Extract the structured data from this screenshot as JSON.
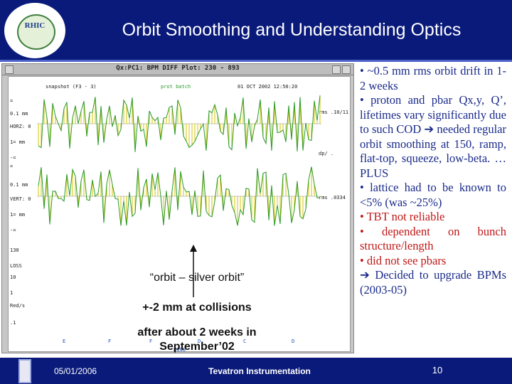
{
  "slide": {
    "title": "Orbit Smoothing and Understanding Optics",
    "logo_text": "RHIC"
  },
  "screenshot": {
    "window_title": "Qx:PC1: BPM DIFF Plot: 230 - 893",
    "snapshot": "snapshot (F3 - 3)",
    "prot_batch": "prot batch",
    "timestamp": "01 OCT 2002 12:50:20",
    "left_labels": [
      "=",
      "0.1 mm",
      "HORZ: 0",
      "1= mm",
      "-=",
      "=",
      "0.1 mm",
      "VERT: 0",
      "1= mm",
      "-=",
      "130",
      "LOSS",
      "10",
      "1",
      "Red/s",
      ".1"
    ],
    "right_labels": [
      "rms .10/11",
      "dp/ .",
      "rms .0334"
    ],
    "bottom_labels": [
      "E",
      "F",
      "F",
      "D",
      "C",
      "D",
      "RING"
    ]
  },
  "annotations": {
    "line1": "“orbit – silver orbit”",
    "line2": "+-2 mm at collisions",
    "line3": "after about 2 weeks in September’02"
  },
  "bullets": [
    {
      "text": "• ~0.5 mm rms orbit drift in 1-2 weeks",
      "color": "blue"
    },
    {
      "text": "•  proton and pbar Qx,y, Q’, lifetimes vary significantly due to such COD ➔ needed regular orbit smoothing at 150, ramp, flat-top, squeeze, low-beta. … PLUS",
      "color": "blue"
    },
    {
      "text": "• lattice had to be known to <5% (was ~25%)",
      "color": "blue"
    },
    {
      "text": "• TBT not reliable",
      "color": "red"
    },
    {
      "text": "•  dependent on bunch structure/length",
      "color": "red"
    },
    {
      "text": "• did not see pbars",
      "color": "red"
    },
    {
      "text": "➔ Decided to upgrade BPMs (2003-05)",
      "color": "blue"
    }
  ],
  "footer": {
    "date": "05/01/2006",
    "name": "Tevatron Instrumentation",
    "page": "10"
  },
  "colors": {
    "header_bg": "#0a1a7a",
    "trace_green": "#2a9a2a",
    "trace_yellow": "#d4c400",
    "bullet_blue": "#1a2a8a",
    "bullet_red": "#c01818"
  }
}
